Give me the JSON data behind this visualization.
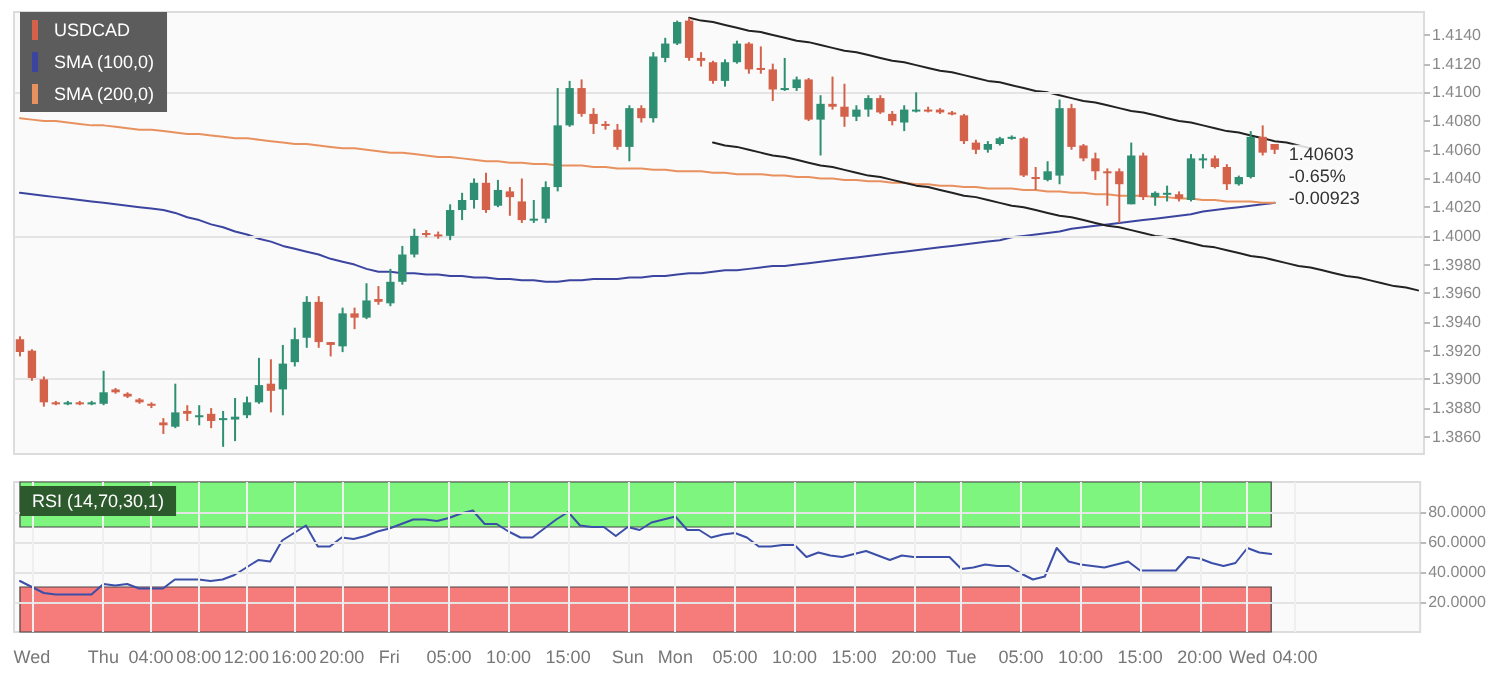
{
  "chart_data": [
    {
      "type": "candlestick",
      "legend": "top left",
      "grid": "y",
      "marker": "none",
      "line_style": "solid",
      "categories": [
        null,
        null,
        null,
        null,
        null,
        null,
        null,
        null,
        null,
        null,
        null,
        null,
        null,
        null,
        null,
        null,
        null,
        null,
        null,
        null,
        null,
        null,
        null,
        null,
        null,
        null,
        null,
        null,
        null,
        null,
        null,
        null,
        null,
        null,
        null,
        null,
        null,
        null,
        null,
        null,
        null,
        null,
        null,
        null,
        null,
        null,
        null,
        null,
        null,
        null,
        null,
        null,
        null,
        null,
        null,
        null,
        null,
        null,
        null,
        null,
        null,
        null,
        null,
        null,
        null,
        null,
        null,
        null,
        null,
        null,
        null,
        null,
        null,
        null,
        null,
        null,
        null,
        null,
        null,
        null,
        null,
        null,
        null,
        null,
        null,
        null,
        null,
        null,
        null,
        null,
        null,
        null,
        null,
        null,
        null,
        null,
        null,
        null,
        null,
        null,
        null,
        null,
        null,
        null,
        null,
        null,
        null,
        null,
        null,
        null,
        null,
        null,
        null,
        null,
        null,
        null,
        null,
        null
      ],
      "ylim": [
        1.3848,
        1.4156
      ],
      "yticks": [
        {
          "value": 1.386,
          "label": "1.3860"
        },
        {
          "value": 1.388,
          "label": "1.3880"
        },
        {
          "value": 1.39,
          "label": "1.3900"
        },
        {
          "value": 1.392,
          "label": "1.3920"
        },
        {
          "value": 1.394,
          "label": "1.3940"
        },
        {
          "value": 1.396,
          "label": "1.3960"
        },
        {
          "value": 1.398,
          "label": "1.3980"
        },
        {
          "value": 1.4,
          "label": "1.4000"
        },
        {
          "value": 1.402,
          "label": "1.4020"
        },
        {
          "value": 1.404,
          "label": "1.4040"
        },
        {
          "value": 1.406,
          "label": "1.4060"
        },
        {
          "value": 1.408,
          "label": "1.4080"
        },
        {
          "value": 1.41,
          "label": "1.4100"
        },
        {
          "value": 1.412,
          "label": "1.4120"
        },
        {
          "value": 1.414,
          "label": "1.4140"
        }
      ],
      "annotations": [
        "1.40603",
        "-0.65%",
        "-0.00923"
      ],
      "series": [
        {
          "name": "USDCAD",
          "ohlc": [
            [
              1.3928,
              1.393,
              1.3916,
              1.3919
            ],
            [
              1.392,
              1.3921,
              1.3899,
              1.3901
            ],
            [
              1.39,
              1.3902,
              1.3881,
              1.3884
            ],
            [
              1.3884,
              1.3885,
              1.3882,
              1.3883
            ],
            [
              1.3883,
              1.3885,
              1.3882,
              1.3884
            ],
            [
              1.3884,
              1.3885,
              1.3882,
              1.3883
            ],
            [
              1.3883,
              1.3885,
              1.3882,
              1.3884
            ],
            [
              1.3883,
              1.3906,
              1.3882,
              1.3891
            ],
            [
              1.3893,
              1.3894,
              1.389,
              1.3891
            ],
            [
              1.389,
              1.3891,
              1.3887,
              1.3888
            ],
            [
              1.3886,
              1.3887,
              1.3883,
              1.3884
            ],
            [
              1.3883,
              1.3884,
              1.388,
              1.3882
            ],
            [
              1.387,
              1.3873,
              1.3862,
              1.3868
            ],
            [
              1.3867,
              1.3897,
              1.3866,
              1.3877
            ],
            [
              1.3878,
              1.3882,
              1.3871,
              1.3876
            ],
            [
              1.3874,
              1.3882,
              1.3868,
              1.3875
            ],
            [
              1.3876,
              1.388,
              1.3866,
              1.3871
            ],
            [
              1.3872,
              1.3878,
              1.3853,
              1.3873
            ],
            [
              1.3872,
              1.3887,
              1.3857,
              1.3874
            ],
            [
              1.3875,
              1.3888,
              1.3873,
              1.3884
            ],
            [
              1.3884,
              1.3915,
              1.3883,
              1.3896
            ],
            [
              1.3897,
              1.3914,
              1.3877,
              1.3892
            ],
            [
              1.3893,
              1.3924,
              1.3875,
              1.3911
            ],
            [
              1.3912,
              1.3936,
              1.3909,
              1.3928
            ],
            [
              1.3929,
              1.3958,
              1.3922,
              1.3954
            ],
            [
              1.3954,
              1.3958,
              1.3922,
              1.3926
            ],
            [
              1.3926,
              1.3926,
              1.3916,
              1.3924
            ],
            [
              1.3923,
              1.395,
              1.3919,
              1.3946
            ],
            [
              1.3946,
              1.395,
              1.3935,
              1.3943
            ],
            [
              1.3943,
              1.3967,
              1.3942,
              1.3955
            ],
            [
              1.3956,
              1.3965,
              1.3952,
              1.3954
            ],
            [
              1.3953,
              1.3977,
              1.3951,
              1.3968
            ],
            [
              1.3968,
              1.3993,
              1.3966,
              1.3987
            ],
            [
              1.3987,
              1.4005,
              1.3985,
              1.4
            ],
            [
              1.4002,
              1.4004,
              1.3999,
              1.4001
            ],
            [
              1.4001,
              1.4003,
              1.3998,
              1.4
            ],
            [
              1.4,
              1.4022,
              1.3997,
              1.4018
            ],
            [
              1.4018,
              1.403,
              1.4011,
              1.4025
            ],
            [
              1.4025,
              1.404,
              1.4019,
              1.4037
            ],
            [
              1.4037,
              1.4044,
              1.4016,
              1.4018
            ],
            [
              1.4021,
              1.4039,
              1.402,
              1.4032
            ],
            [
              1.4031,
              1.4034,
              1.4014,
              1.4027
            ],
            [
              1.4024,
              1.404,
              1.4009,
              1.4011
            ],
            [
              1.4011,
              1.4025,
              1.4009,
              1.4012
            ],
            [
              1.4012,
              1.4038,
              1.4009,
              1.4034
            ],
            [
              1.4034,
              1.4103,
              1.4031,
              1.4077
            ],
            [
              1.4077,
              1.4108,
              1.4076,
              1.4103
            ],
            [
              1.4103,
              1.4109,
              1.4083,
              1.4085
            ],
            [
              1.4085,
              1.4089,
              1.4071,
              1.4078
            ],
            [
              1.4078,
              1.408,
              1.4074,
              1.4077
            ],
            [
              1.4074,
              1.4078,
              1.406,
              1.4062
            ],
            [
              1.4062,
              1.4091,
              1.4052,
              1.4089
            ],
            [
              1.4089,
              1.4091,
              1.4079,
              1.4082
            ],
            [
              1.4082,
              1.4128,
              1.4079,
              1.4125
            ],
            [
              1.4124,
              1.4138,
              1.4121,
              1.4134
            ],
            [
              1.4134,
              1.415,
              1.4133,
              1.4149
            ],
            [
              1.415,
              1.4152,
              1.4122,
              1.4124
            ],
            [
              1.4124,
              1.4128,
              1.4118,
              1.4122
            ],
            [
              1.4121,
              1.4122,
              1.4106,
              1.4108
            ],
            [
              1.4108,
              1.4123,
              1.4104,
              1.4121
            ],
            [
              1.4121,
              1.4136,
              1.412,
              1.4134
            ],
            [
              1.4134,
              1.4135,
              1.4113,
              1.4116
            ],
            [
              1.4117,
              1.4132,
              1.4113,
              1.4116
            ],
            [
              1.4116,
              1.412,
              1.4094,
              1.4102
            ],
            [
              1.4102,
              1.4124,
              1.4101,
              1.4103
            ],
            [
              1.4103,
              1.4111,
              1.4101,
              1.4109
            ],
            [
              1.4109,
              1.411,
              1.408,
              1.4081
            ],
            [
              1.4081,
              1.4098,
              1.4056,
              1.4092
            ],
            [
              1.4092,
              1.4111,
              1.4088,
              1.409
            ],
            [
              1.409,
              1.4106,
              1.4076,
              1.4083
            ],
            [
              1.4083,
              1.4091,
              1.408,
              1.4088
            ],
            [
              1.4088,
              1.4098,
              1.4083,
              1.4096
            ],
            [
              1.4096,
              1.4098,
              1.4085,
              1.4086
            ],
            [
              1.4085,
              1.4087,
              1.4077,
              1.408
            ],
            [
              1.4079,
              1.4091,
              1.4073,
              1.4088
            ],
            [
              1.4087,
              1.41,
              1.4086,
              1.4088
            ],
            [
              1.4088,
              1.409,
              1.4086,
              1.4087
            ],
            [
              1.4088,
              1.4089,
              1.4085,
              1.4086
            ],
            [
              1.4086,
              1.4087,
              1.4084,
              1.4085
            ],
            [
              1.4084,
              1.4085,
              1.4064,
              1.4066
            ],
            [
              1.4065,
              1.4067,
              1.4057,
              1.406
            ],
            [
              1.406,
              1.4066,
              1.4058,
              1.4064
            ],
            [
              1.4064,
              1.4069,
              1.4063,
              1.4068
            ],
            [
              1.4068,
              1.407,
              1.4067,
              1.4069
            ],
            [
              1.4068,
              1.4069,
              1.4041,
              1.4042
            ],
            [
              1.4041,
              1.4048,
              1.4032,
              1.404
            ],
            [
              1.4039,
              1.4052,
              1.4038,
              1.4045
            ],
            [
              1.4042,
              1.4095,
              1.4036,
              1.4089
            ],
            [
              1.4089,
              1.4092,
              1.406,
              1.4062
            ],
            [
              1.4063,
              1.4064,
              1.4052,
              1.4054
            ],
            [
              1.4054,
              1.4058,
              1.4039,
              1.4045
            ],
            [
              1.4045,
              1.4047,
              1.4021,
              1.4044
            ],
            [
              1.4045,
              1.4047,
              1.4009,
              1.4036
            ],
            [
              1.4022,
              1.4065,
              1.4022,
              1.4056
            ],
            [
              1.4056,
              1.4058,
              1.4025,
              1.4027
            ],
            [
              1.4027,
              1.4031,
              1.4021,
              1.403
            ],
            [
              1.4029,
              1.4035,
              1.4024,
              1.403
            ],
            [
              1.4029,
              1.4031,
              1.4024,
              1.4026
            ],
            [
              1.4025,
              1.4057,
              1.4024,
              1.4054
            ],
            [
              1.4053,
              1.4057,
              1.4047,
              1.4054
            ],
            [
              1.4054,
              1.4056,
              1.4047,
              1.4048
            ],
            [
              1.4048,
              1.405,
              1.4032,
              1.4036
            ],
            [
              1.4036,
              1.4042,
              1.4035,
              1.4041
            ],
            [
              1.4041,
              1.4073,
              1.404,
              1.4069
            ],
            [
              1.4069,
              1.4077,
              1.4056,
              1.4058
            ],
            [
              1.4064,
              1.4064,
              1.4057,
              1.406
            ],
            null,
            null,
            null,
            null,
            null,
            null,
            null,
            null,
            null,
            null,
            null,
            null
          ],
          "colors": [
            "#d4624a",
            "#d4624a",
            "#d4624a",
            "#d4624a",
            "#2f8f73",
            "#d4624a",
            "#2f8f73",
            "#2f8f73",
            "#d4624a",
            "#d4624a",
            "#d4624a",
            "#d4624a",
            "#d4624a",
            "#2f8f73",
            "#d4624a",
            "#2f8f73",
            "#d4624a",
            "#2f8f73",
            "#2f8f73",
            "#2f8f73",
            "#2f8f73",
            "#d4624a",
            "#2f8f73",
            "#2f8f73",
            "#2f8f73",
            "#d4624a",
            "#d4624a",
            "#2f8f73",
            "#d4624a",
            "#2f8f73",
            "#d4624a",
            "#2f8f73",
            "#2f8f73",
            "#2f8f73",
            "#d4624a",
            "#d4624a",
            "#2f8f73",
            "#2f8f73",
            "#2f8f73",
            "#d4624a",
            "#2f8f73",
            "#d4624a",
            "#d4624a",
            "#2f8f73",
            "#2f8f73",
            "#2f8f73",
            "#2f8f73",
            "#d4624a",
            "#d4624a",
            "#d4624a",
            "#d4624a",
            "#2f8f73",
            "#d4624a",
            "#2f8f73",
            "#2f8f73",
            "#2f8f73",
            "#d4624a",
            "#d4624a",
            "#d4624a",
            "#2f8f73",
            "#2f8f73",
            "#d4624a",
            "#d4624a",
            "#d4624a",
            "#2f8f73",
            "#2f8f73",
            "#d4624a",
            "#2f8f73",
            "#d4624a",
            "#d4624a",
            "#2f8f73",
            "#2f8f73",
            "#d4624a",
            "#d4624a",
            "#2f8f73",
            "#2f8f73",
            "#d4624a",
            "#d4624a",
            "#d4624a",
            "#d4624a",
            "#d4624a",
            "#2f8f73",
            "#2f8f73",
            "#2f8f73",
            "#d4624a",
            "#d4624a",
            "#2f8f73",
            "#2f8f73",
            "#d4624a",
            "#d4624a",
            "#d4624a",
            "#d4624a",
            "#d4624a",
            "#2f8f73",
            "#d4624a",
            "#2f8f73",
            "#2f8f73",
            "#d4624a",
            "#2f8f73",
            "#2f8f73",
            "#d4624a",
            "#d4624a",
            "#2f8f73",
            "#2f8f73",
            "#d4624a",
            "#d4624a",
            null,
            null,
            null,
            null,
            null,
            null,
            null,
            null,
            null,
            null,
            null,
            null
          ]
        },
        {
          "name": "SMA (100,0)",
          "type": "line",
          "color": "#3b45a0",
          "values": [
            1.403,
            1.4029,
            1.4028,
            1.4027,
            1.4026,
            1.4025,
            1.4024,
            1.4023,
            1.4022,
            1.4021,
            1.402,
            1.4019,
            1.4018,
            1.4016,
            1.4013,
            1.4011,
            1.4008,
            1.4006,
            1.4003,
            1.4001,
            1.3998,
            1.3996,
            1.3993,
            1.3991,
            1.3989,
            1.3987,
            1.3984,
            1.3982,
            1.398,
            1.3977,
            1.3975,
            1.3975,
            1.3974,
            1.3974,
            1.3973,
            1.3973,
            1.3972,
            1.3972,
            1.3971,
            1.3971,
            1.397,
            1.397,
            1.3969,
            1.3969,
            1.3968,
            1.3968,
            1.3969,
            1.3969,
            1.397,
            1.397,
            1.397,
            1.3971,
            1.3971,
            1.3972,
            1.3972,
            1.3973,
            1.3974,
            1.3974,
            1.3975,
            1.3976,
            1.3976,
            1.3977,
            1.3978,
            1.3979,
            1.3979,
            1.398,
            1.3981,
            1.3982,
            1.3983,
            1.3984,
            1.3985,
            1.3986,
            1.3987,
            1.3988,
            1.3989,
            1.399,
            1.3991,
            1.3992,
            1.3993,
            1.3994,
            1.3995,
            1.3996,
            1.3997,
            1.3999,
            1.4,
            1.4001,
            1.4002,
            1.4003,
            1.4005,
            1.4006,
            1.4007,
            1.4008,
            1.4009,
            1.401,
            1.4011,
            1.4012,
            1.4013,
            1.4014,
            1.4015,
            1.4017,
            1.4018,
            1.4019,
            1.402,
            1.4021,
            1.4022,
            1.4023,
            null,
            null,
            null,
            null,
            null,
            null,
            null,
            null,
            null,
            null,
            null,
            null
          ]
        },
        {
          "name": "SMA (200,0)",
          "type": "line",
          "color": "#e8915f",
          "values": [
            1.4082,
            1.4081,
            1.408,
            1.408,
            1.4079,
            1.4078,
            1.4077,
            1.4077,
            1.4076,
            1.4075,
            1.4074,
            1.4074,
            1.4073,
            1.4072,
            1.4071,
            1.4071,
            1.407,
            1.4069,
            1.4068,
            1.4068,
            1.4067,
            1.4066,
            1.4065,
            1.4064,
            1.4064,
            1.4063,
            1.4062,
            1.4061,
            1.4061,
            1.406,
            1.4059,
            1.4058,
            1.4058,
            1.4057,
            1.4056,
            1.4055,
            1.4055,
            1.4054,
            1.4053,
            1.4052,
            1.4052,
            1.4051,
            1.4051,
            1.405,
            1.405,
            1.4049,
            1.4049,
            1.4049,
            1.4048,
            1.4048,
            1.4047,
            1.4047,
            1.4047,
            1.4046,
            1.4046,
            1.4045,
            1.4045,
            1.4045,
            1.4044,
            1.4044,
            1.4043,
            1.4043,
            1.4043,
            1.4042,
            1.4042,
            1.4041,
            1.4041,
            1.404,
            1.404,
            1.4039,
            1.4039,
            1.4038,
            1.4038,
            1.4037,
            1.4037,
            1.4036,
            1.4036,
            1.4035,
            1.4035,
            1.4034,
            1.4034,
            1.4033,
            1.4033,
            1.4033,
            1.4032,
            1.4032,
            1.4031,
            1.4031,
            1.403,
            1.403,
            1.4029,
            1.4029,
            1.4028,
            1.4028,
            1.4028,
            1.4027,
            1.4027,
            1.4026,
            1.4026,
            1.4025,
            1.4025,
            1.4024,
            1.4024,
            1.4024,
            1.4023,
            1.4023,
            null,
            null,
            null,
            null,
            null,
            null,
            null,
            null,
            null,
            null,
            null,
            null
          ]
        },
        {
          "type": "line",
          "color": "#222222",
          "values": [
            null,
            null,
            null,
            null,
            null,
            null,
            null,
            null,
            null,
            null,
            null,
            null,
            null,
            null,
            null,
            null,
            null,
            null,
            null,
            null,
            null,
            null,
            null,
            null,
            null,
            null,
            null,
            null,
            null,
            null,
            null,
            null,
            null,
            null,
            null,
            null,
            null,
            null,
            null,
            null,
            null,
            null,
            null,
            null,
            null,
            null,
            null,
            null,
            null,
            null,
            null,
            null,
            null,
            null,
            null,
            null,
            1.4152,
            1.415,
            1.4149,
            1.4147,
            1.4145,
            1.4143,
            1.4142,
            1.414,
            1.4138,
            1.4136,
            1.4135,
            1.4133,
            1.4131,
            1.4129,
            1.4128,
            1.4126,
            1.4124,
            1.4122,
            1.4121,
            1.4119,
            1.4117,
            1.4115,
            1.4114,
            1.4112,
            1.411,
            1.4108,
            1.4107,
            1.4105,
            1.4103,
            1.4101,
            1.41,
            1.4098,
            1.4096,
            1.4094,
            1.4093,
            1.4091,
            1.4089,
            1.4087,
            1.4086,
            1.4084,
            1.4082,
            1.408,
            1.4079,
            1.4077,
            1.4075,
            1.4073,
            1.4072,
            1.407,
            1.4068,
            1.4066,
            1.4065,
            1.4063,
            1.4061,
            null,
            null,
            null,
            null,
            null,
            null,
            null,
            null,
            null
          ]
        },
        {
          "type": "line",
          "color": "#222222",
          "values": [
            null,
            null,
            null,
            null,
            null,
            null,
            null,
            null,
            null,
            null,
            null,
            null,
            null,
            null,
            null,
            null,
            null,
            null,
            null,
            null,
            null,
            null,
            null,
            null,
            null,
            null,
            null,
            null,
            null,
            null,
            null,
            null,
            null,
            null,
            null,
            null,
            null,
            null,
            null,
            null,
            null,
            null,
            null,
            null,
            null,
            null,
            null,
            null,
            null,
            null,
            null,
            null,
            null,
            null,
            null,
            null,
            null,
            null,
            1.4065,
            1.4063,
            1.4062,
            1.406,
            1.4058,
            1.4056,
            1.4055,
            1.4053,
            1.4051,
            1.4049,
            1.4048,
            1.4046,
            1.4044,
            1.4042,
            1.4041,
            1.4039,
            1.4037,
            1.4035,
            1.4034,
            1.4032,
            1.403,
            1.4028,
            1.4027,
            1.4025,
            1.4023,
            1.4021,
            1.402,
            1.4018,
            1.4016,
            1.4014,
            1.4013,
            1.4011,
            1.4009,
            1.4007,
            1.4006,
            1.4004,
            1.4002,
            1.4,
            1.3999,
            1.3997,
            1.3995,
            1.3993,
            1.3992,
            1.399,
            1.3988,
            1.3986,
            1.3985,
            1.3983,
            1.3981,
            1.3979,
            1.3978,
            1.3976,
            1.3974,
            1.3972,
            1.3971,
            1.3969,
            1.3967,
            1.3965,
            1.3964,
            1.3962
          ]
        }
      ]
    },
    {
      "type": "line",
      "title": "RSI (14,70,30,1)",
      "grid": true,
      "marker": "none",
      "line_style": "solid",
      "categories": [
        null,
        "Wed",
        null,
        null,
        null,
        null,
        null,
        "Thu",
        null,
        null,
        null,
        "04:00",
        null,
        null,
        null,
        "08:00",
        null,
        null,
        null,
        "12:00",
        null,
        null,
        null,
        "16:00",
        null,
        null,
        null,
        "20:00",
        null,
        null,
        null,
        "Fri",
        null,
        null,
        null,
        null,
        "05:00",
        null,
        null,
        null,
        null,
        "10:00",
        null,
        null,
        null,
        null,
        "15:00",
        null,
        null,
        null,
        null,
        "Sun",
        null,
        null,
        null,
        "Mon",
        null,
        null,
        null,
        null,
        "05:00",
        null,
        null,
        null,
        null,
        "10:00",
        null,
        null,
        null,
        null,
        "15:00",
        null,
        null,
        null,
        null,
        "20:00",
        null,
        null,
        null,
        "Tue",
        null,
        null,
        null,
        null,
        "05:00",
        null,
        null,
        null,
        null,
        "10:00",
        null,
        null,
        null,
        null,
        "15:00",
        null,
        null,
        null,
        null,
        "20:00",
        null,
        null,
        null,
        "Wed",
        null,
        null,
        null,
        "04:00",
        null,
        null,
        null,
        null,
        null,
        null,
        null,
        null,
        null,
        null
      ],
      "ylim": [
        0,
        100
      ],
      "yticks": [
        {
          "value": 20,
          "label": "20.0000"
        },
        {
          "value": 40,
          "label": "40.0000"
        },
        {
          "value": 60,
          "label": "60.0000"
        },
        {
          "value": 80,
          "label": "80.0000"
        }
      ],
      "bands": [
        {
          "axis": "y",
          "from": 70,
          "to": 100,
          "color": "#7ef57e"
        },
        {
          "axis": "y",
          "from": 0,
          "to": 30,
          "color": "#f67b7b"
        }
      ],
      "series": [
        {
          "color": "#3c4fa8",
          "values": [
            34,
            30,
            26,
            25,
            25,
            25,
            25,
            32,
            31,
            32,
            29,
            29,
            29,
            35,
            35,
            35,
            34,
            35,
            38,
            43,
            48,
            47,
            61,
            66,
            71,
            57,
            57,
            63,
            62,
            64,
            67,
            69,
            72,
            75,
            75,
            74,
            76,
            79,
            81,
            72,
            72,
            67,
            63,
            63,
            69,
            75,
            80,
            71,
            70,
            70,
            64,
            70,
            68,
            73,
            75,
            77,
            68,
            68,
            63,
            65,
            66,
            63,
            57,
            57,
            58,
            58,
            50,
            53,
            51,
            50,
            52,
            54,
            51,
            48,
            51,
            50,
            50,
            50,
            50,
            42,
            43,
            45,
            44,
            44,
            39,
            35,
            37,
            56,
            47,
            45,
            44,
            43,
            45,
            47,
            41,
            41,
            41,
            41,
            50,
            49,
            46,
            44,
            46,
            56,
            53,
            52,
            null,
            null,
            null,
            null,
            null,
            null,
            null,
            null,
            null,
            null,
            null,
            null
          ]
        }
      ]
    }
  ]
}
